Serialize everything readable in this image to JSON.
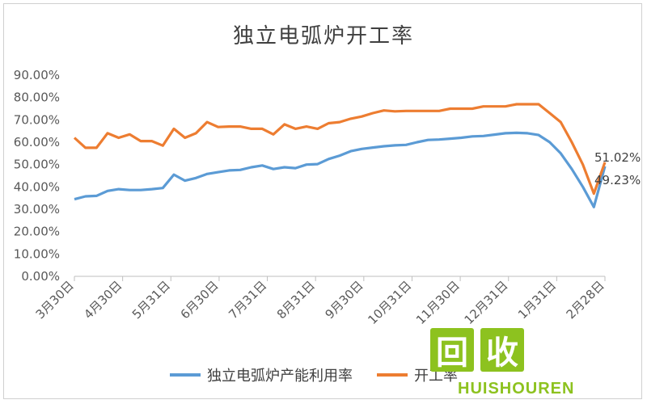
{
  "chart_data": {
    "type": "line",
    "title": "独立电弧炉开工率",
    "y_ticks": [
      "0.00%",
      "10.00%",
      "20.00%",
      "30.00%",
      "40.00%",
      "50.00%",
      "60.00%",
      "70.00%",
      "80.00%",
      "90.00%"
    ],
    "ylim": [
      0,
      90
    ],
    "x_ticks": [
      "3月30日",
      "4月30日",
      "5月31日",
      "6月30日",
      "7月31日",
      "8月31日",
      "9月30日",
      "10月31日",
      "11月30日",
      "12月31日",
      "1月31日",
      "2月28日"
    ],
    "grid": false,
    "legend_position": "bottom",
    "series": [
      {
        "name": "独立电弧炉产能利用率",
        "color": "#5b9bd5",
        "values": [
          34.5,
          35.8,
          36.0,
          38.2,
          39.0,
          38.6,
          38.6,
          39.0,
          39.5,
          45.5,
          42.8,
          44.0,
          45.8,
          46.6,
          47.4,
          47.6,
          48.8,
          49.6,
          48.0,
          48.8,
          48.4,
          50.0,
          50.2,
          52.5,
          54.0,
          56.0,
          57.0,
          57.6,
          58.2,
          58.6,
          58.8,
          60.0,
          61.0,
          61.2,
          61.6,
          62.0,
          62.6,
          62.8,
          63.4,
          64.0,
          64.2,
          64.0,
          63.2,
          60.0,
          55.0,
          48.0,
          40.0,
          31.0,
          49.23
        ]
      },
      {
        "name": "开工率",
        "color": "#ed7d31",
        "values": [
          62.0,
          57.5,
          57.5,
          64.0,
          62.0,
          63.5,
          60.5,
          60.5,
          58.5,
          66.0,
          62.0,
          64.0,
          69.0,
          66.8,
          67.0,
          67.0,
          66.0,
          66.0,
          63.5,
          68.0,
          66.0,
          67.0,
          66.0,
          68.5,
          69.0,
          70.5,
          71.5,
          73.0,
          74.2,
          73.8,
          74.0,
          74.0,
          74.0,
          74.0,
          75.0,
          75.0,
          75.0,
          76.0,
          76.0,
          76.0,
          77.0,
          77.0,
          77.0,
          73.0,
          69.0,
          60.0,
          50.0,
          37.0,
          51.02
        ]
      }
    ],
    "data_labels": [
      "51.02%",
      "49.23%"
    ]
  },
  "watermark": {
    "glyphs": [
      "回",
      "收"
    ],
    "text": "HUISHOUREN"
  }
}
